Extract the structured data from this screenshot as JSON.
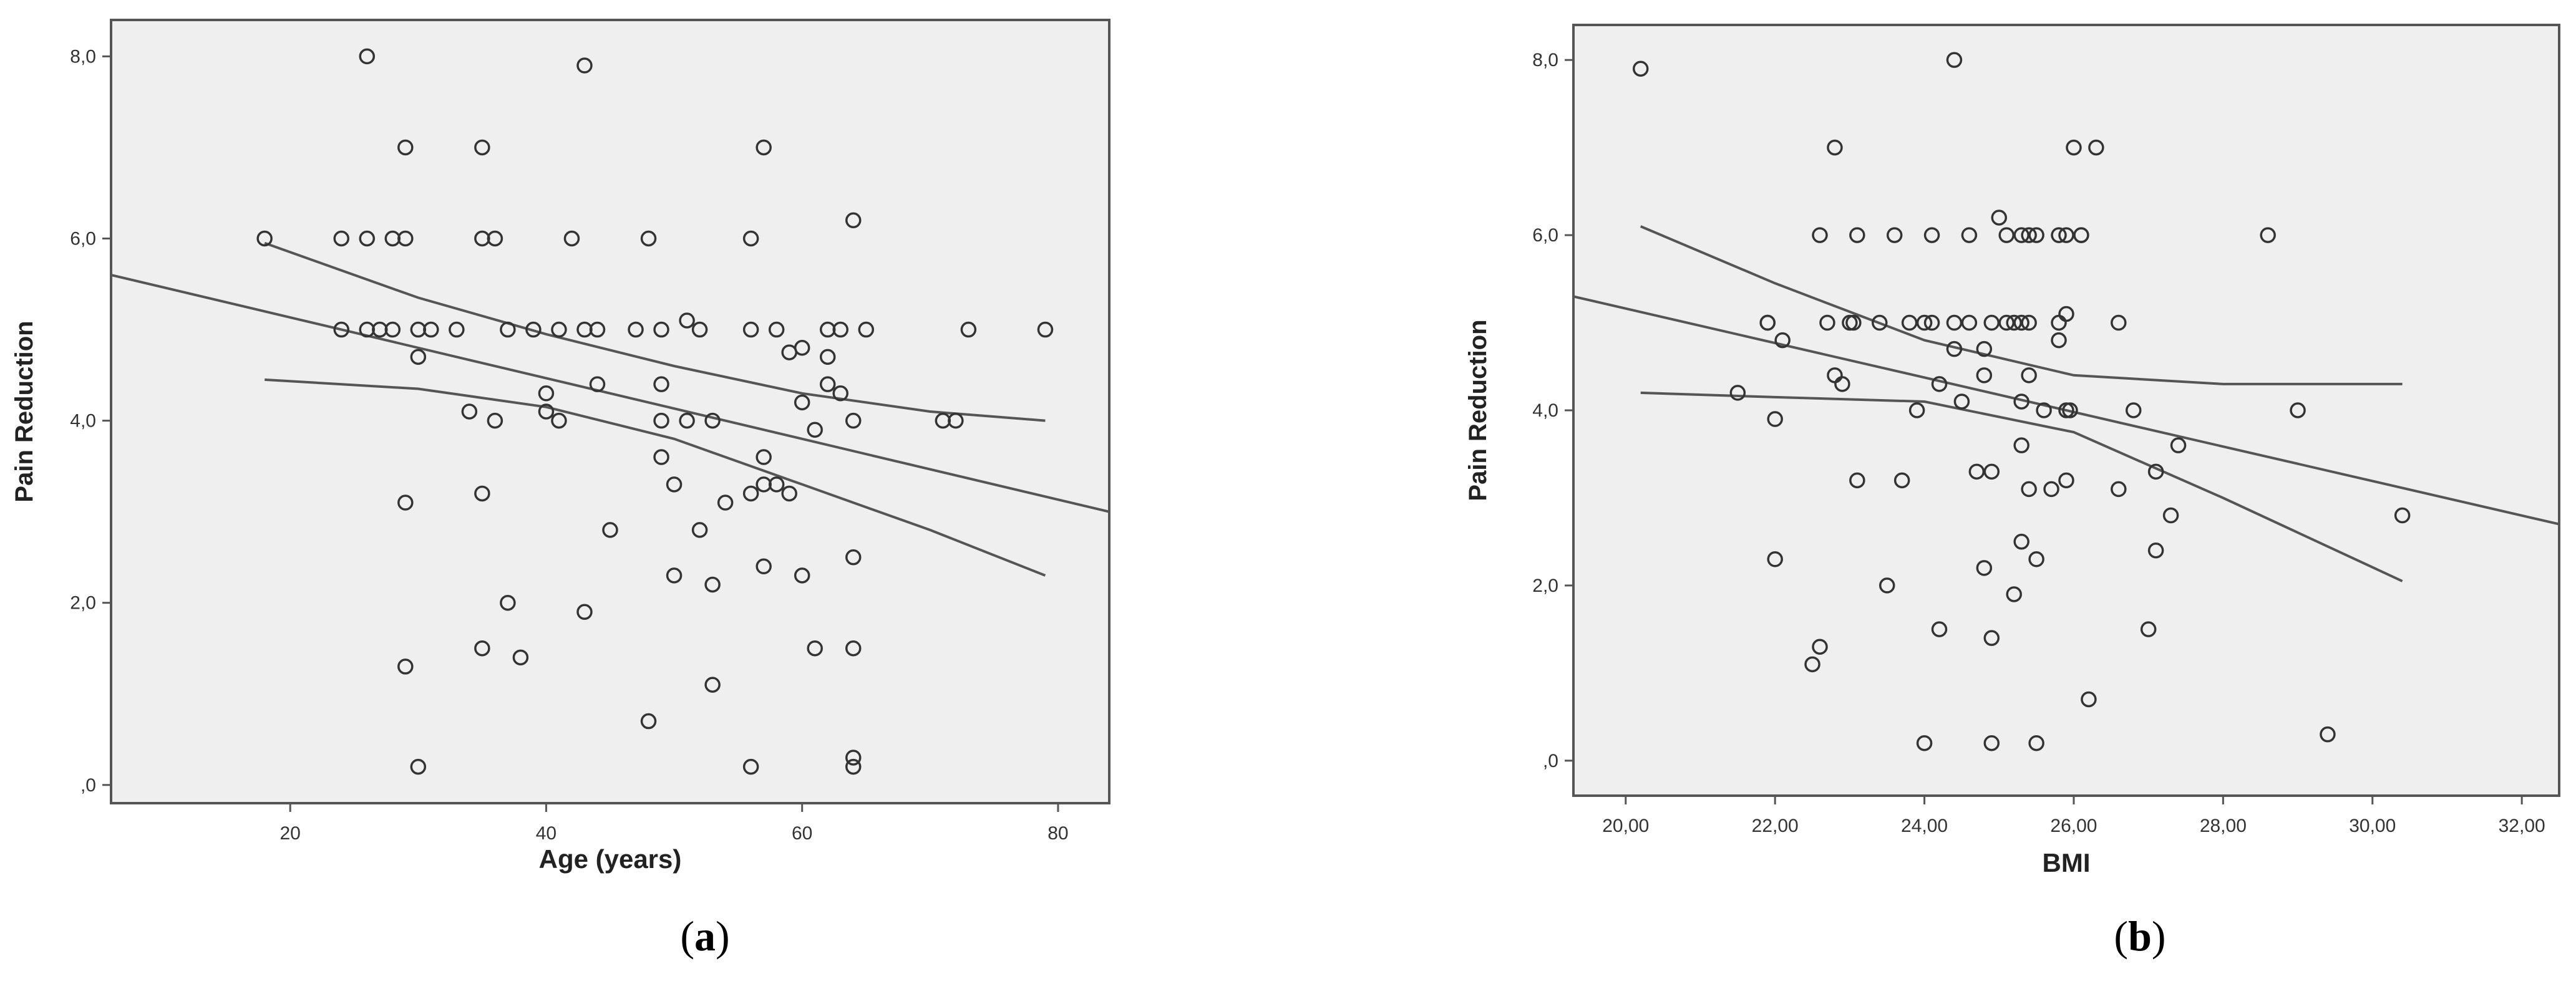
{
  "panels": [
    {
      "caption_open": "(",
      "caption_letter": "a",
      "caption_close": ")"
    },
    {
      "caption_open": "(",
      "caption_letter": "b",
      "caption_close": ")"
    }
  ],
  "colors": {
    "plot_background": "#efefef",
    "frame": "#555555",
    "markers": "#333333",
    "lines": "#555555"
  },
  "chart_data": [
    {
      "type": "scatter",
      "xlabel": "Age (years)",
      "ylabel": "Pain Reduction",
      "xlim": [
        6,
        84
      ],
      "ylim": [
        -0.2,
        8.4
      ],
      "xticks": [
        20,
        40,
        60,
        80
      ],
      "xtick_labels": [
        "20",
        "40",
        "60",
        "80"
      ],
      "yticks": [
        0,
        2,
        4,
        6,
        8
      ],
      "ytick_labels": [
        ",0",
        "2,0",
        "4,0",
        "6,0",
        "8,0"
      ],
      "grid": false,
      "points": [
        [
          18,
          6
        ],
        [
          24,
          5
        ],
        [
          24,
          6
        ],
        [
          26,
          5
        ],
        [
          26,
          6
        ],
        [
          26,
          8
        ],
        [
          27,
          5
        ],
        [
          28,
          5
        ],
        [
          28,
          6
        ],
        [
          29,
          6
        ],
        [
          29,
          7
        ],
        [
          29,
          1.3
        ],
        [
          29,
          3.1
        ],
        [
          30,
          4.7
        ],
        [
          30,
          5
        ],
        [
          30,
          0.2
        ],
        [
          31,
          5
        ],
        [
          33,
          5
        ],
        [
          34,
          4.1
        ],
        [
          35,
          6
        ],
        [
          35,
          7
        ],
        [
          35,
          3.2
        ],
        [
          35,
          1.5
        ],
        [
          36,
          4
        ],
        [
          36,
          6
        ],
        [
          37,
          5
        ],
        [
          37,
          2
        ],
        [
          38,
          1.4
        ],
        [
          39,
          5
        ],
        [
          40,
          4.1
        ],
        [
          40,
          4.3
        ],
        [
          41,
          4
        ],
        [
          41,
          5
        ],
        [
          42,
          6
        ],
        [
          43,
          5
        ],
        [
          43,
          7.9
        ],
        [
          43,
          1.9
        ],
        [
          44,
          4.4
        ],
        [
          44,
          5
        ],
        [
          45,
          2.8
        ],
        [
          47,
          5
        ],
        [
          48,
          6
        ],
        [
          48,
          0.7
        ],
        [
          49,
          5
        ],
        [
          49,
          4.4
        ],
        [
          49,
          4
        ],
        [
          49,
          3.6
        ],
        [
          50,
          3.3
        ],
        [
          50,
          2.3
        ],
        [
          51,
          5.1
        ],
        [
          51,
          4
        ],
        [
          52,
          5
        ],
        [
          52,
          2.8
        ],
        [
          53,
          4
        ],
        [
          53,
          2.2
        ],
        [
          53,
          1.1
        ],
        [
          54,
          3.1
        ],
        [
          56,
          6
        ],
        [
          56,
          5
        ],
        [
          56,
          3.2
        ],
        [
          56,
          0.2
        ],
        [
          57,
          7
        ],
        [
          57,
          3.6
        ],
        [
          57,
          3.3
        ],
        [
          57,
          2.4
        ],
        [
          58,
          3.3
        ],
        [
          58,
          5
        ],
        [
          59,
          4.75
        ],
        [
          59,
          3.2
        ],
        [
          60,
          4.8
        ],
        [
          60,
          4.2
        ],
        [
          60,
          2.3
        ],
        [
          61,
          3.9
        ],
        [
          61,
          1.5
        ],
        [
          62,
          5
        ],
        [
          62,
          4.7
        ],
        [
          62,
          4.4
        ],
        [
          63,
          5
        ],
        [
          63,
          4.3
        ],
        [
          64,
          6.2
        ],
        [
          64,
          4
        ],
        [
          64,
          2.5
        ],
        [
          64,
          1.5
        ],
        [
          64,
          0.3
        ],
        [
          64,
          0.2
        ],
        [
          65,
          5
        ],
        [
          71,
          4
        ],
        [
          72,
          4
        ],
        [
          73,
          5
        ],
        [
          79,
          5
        ]
      ],
      "fit_line": {
        "x": [
          6,
          84
        ],
        "y": [
          5.6,
          3.0
        ]
      },
      "ci_upper": {
        "x": [
          18,
          30,
          40,
          50,
          60,
          70,
          79
        ],
        "y": [
          5.95,
          5.35,
          4.95,
          4.6,
          4.3,
          4.1,
          4.0
        ]
      },
      "ci_lower": {
        "x": [
          18,
          30,
          40,
          50,
          60,
          70,
          79
        ],
        "y": [
          4.45,
          4.35,
          4.15,
          3.8,
          3.3,
          2.8,
          2.3
        ]
      }
    },
    {
      "type": "scatter",
      "xlabel": "BMI",
      "ylabel": "Pain Reduction",
      "xlim": [
        19.3,
        32.5
      ],
      "ylim": [
        -0.4,
        8.4
      ],
      "xticks": [
        20,
        22,
        24,
        26,
        28,
        30,
        32
      ],
      "xtick_labels": [
        "20,00",
        "22,00",
        "24,00",
        "26,00",
        "28,00",
        "30,00",
        "32,00"
      ],
      "yticks": [
        0,
        2,
        4,
        6,
        8
      ],
      "ytick_labels": [
        ",0",
        "2,0",
        "4,0",
        "6,0",
        "8,0"
      ],
      "grid": false,
      "points": [
        [
          20.2,
          7.9
        ],
        [
          21.5,
          4.2
        ],
        [
          21.9,
          5
        ],
        [
          21.9,
          5
        ],
        [
          22.0,
          3.9
        ],
        [
          22.0,
          2.3
        ],
        [
          22.1,
          4.8
        ],
        [
          22.5,
          1.1
        ],
        [
          22.6,
          1.3
        ],
        [
          22.6,
          6
        ],
        [
          22.7,
          5
        ],
        [
          22.8,
          7
        ],
        [
          22.8,
          4.4
        ],
        [
          22.9,
          4.3
        ],
        [
          23.0,
          5
        ],
        [
          23.05,
          5
        ],
        [
          23.1,
          6
        ],
        [
          23.1,
          3.2
        ],
        [
          23.4,
          5
        ],
        [
          23.5,
          2
        ],
        [
          23.6,
          6
        ],
        [
          23.7,
          3.2
        ],
        [
          23.8,
          5
        ],
        [
          23.9,
          4
        ],
        [
          24.0,
          0.2
        ],
        [
          24.0,
          5
        ],
        [
          24.1,
          6
        ],
        [
          24.1,
          5
        ],
        [
          24.2,
          4.3
        ],
        [
          24.2,
          1.5
        ],
        [
          24.4,
          8
        ],
        [
          24.4,
          5
        ],
        [
          24.4,
          4.7
        ],
        [
          24.5,
          4.1
        ],
        [
          24.6,
          6
        ],
        [
          24.6,
          5
        ],
        [
          24.7,
          3.3
        ],
        [
          24.8,
          2.2
        ],
        [
          24.8,
          4.4
        ],
        [
          24.8,
          4.7
        ],
        [
          24.9,
          5
        ],
        [
          24.9,
          3.3
        ],
        [
          24.9,
          1.4
        ],
        [
          24.9,
          0.2
        ],
        [
          25.0,
          6.2
        ],
        [
          25.1,
          6
        ],
        [
          25.1,
          5
        ],
        [
          25.2,
          5
        ],
        [
          25.2,
          1.9
        ],
        [
          25.3,
          3.6
        ],
        [
          25.3,
          2.5
        ],
        [
          25.3,
          4.1
        ],
        [
          25.3,
          6
        ],
        [
          25.3,
          5
        ],
        [
          25.4,
          3.1
        ],
        [
          25.4,
          4.4
        ],
        [
          25.4,
          6
        ],
        [
          25.4,
          5
        ],
        [
          25.5,
          2.3
        ],
        [
          25.5,
          0.2
        ],
        [
          25.5,
          6
        ],
        [
          25.6,
          4
        ],
        [
          25.7,
          3.1
        ],
        [
          25.8,
          6
        ],
        [
          25.8,
          4.8
        ],
        [
          25.8,
          5
        ],
        [
          25.9,
          6
        ],
        [
          25.9,
          4
        ],
        [
          25.9,
          3.2
        ],
        [
          25.9,
          5.1
        ],
        [
          25.95,
          4
        ],
        [
          26.0,
          7
        ],
        [
          26.1,
          6
        ],
        [
          26.1,
          6
        ],
        [
          26.2,
          0.7
        ],
        [
          26.3,
          7
        ],
        [
          26.6,
          3.1
        ],
        [
          26.6,
          5
        ],
        [
          26.8,
          4
        ],
        [
          27.0,
          1.5
        ],
        [
          27.1,
          3.3
        ],
        [
          27.1,
          2.4
        ],
        [
          27.3,
          2.8
        ],
        [
          27.4,
          3.6
        ],
        [
          28.6,
          6
        ],
        [
          29.0,
          4
        ],
        [
          29.4,
          0.3
        ],
        [
          30.4,
          2.8
        ]
      ],
      "fit_line": {
        "x": [
          19.3,
          32.5
        ],
        "y": [
          5.3,
          2.7
        ]
      },
      "ci_upper": {
        "x": [
          20.2,
          22,
          24,
          26,
          28,
          30.4
        ],
        "y": [
          6.1,
          5.45,
          4.8,
          4.4,
          4.3,
          4.3
        ]
      },
      "ci_lower": {
        "x": [
          20.2,
          22,
          24,
          26,
          28,
          30.4
        ],
        "y": [
          4.2,
          4.15,
          4.1,
          3.75,
          3.0,
          2.05
        ]
      }
    }
  ]
}
